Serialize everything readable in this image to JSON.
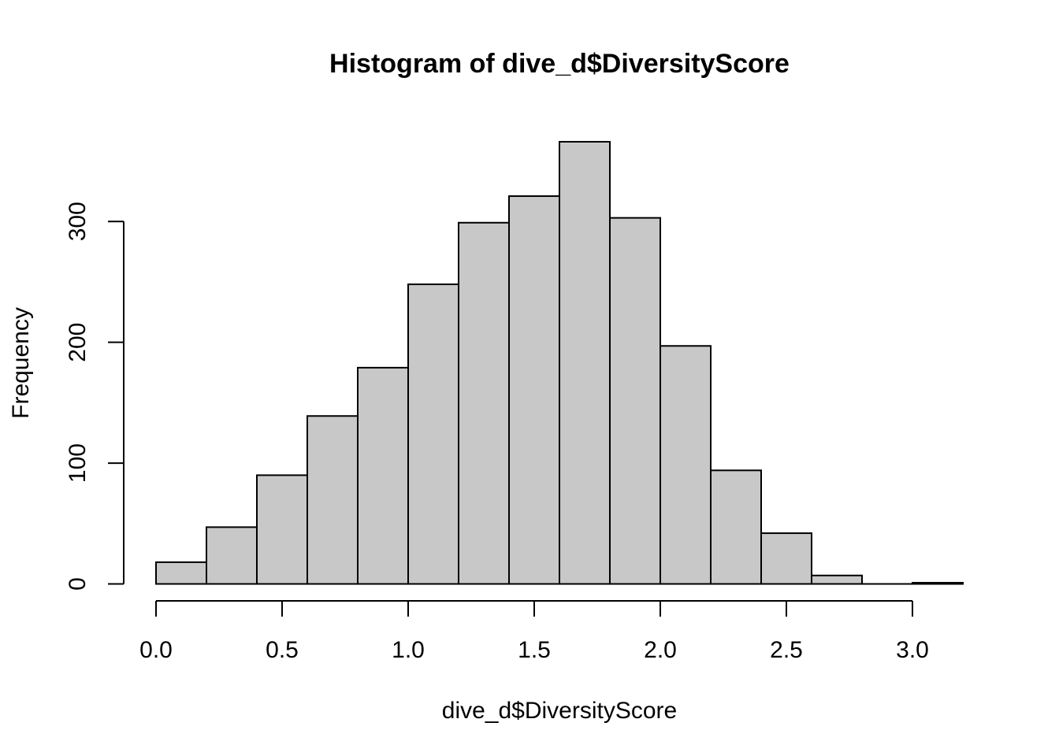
{
  "chart_data": {
    "type": "bar",
    "title": "Histogram of dive_d$DiversityScore",
    "xlabel": "dive_d$DiversityScore",
    "ylabel": "Frequency",
    "bin_edges": [
      0.0,
      0.2,
      0.4,
      0.6,
      0.8,
      1.0,
      1.2,
      1.4,
      1.6,
      1.8,
      2.0,
      2.2,
      2.4,
      2.6,
      2.8,
      3.0,
      3.2
    ],
    "values": [
      18,
      47,
      90,
      139,
      179,
      248,
      299,
      321,
      366,
      303,
      197,
      94,
      42,
      7,
      0,
      1
    ],
    "xlim": [
      0.0,
      3.2
    ],
    "ylim": [
      0,
      366
    ],
    "x_ticks": [
      0.0,
      0.5,
      1.0,
      1.5,
      2.0,
      2.5,
      3.0
    ],
    "x_tick_labels": [
      "0.0",
      "0.5",
      "1.0",
      "1.5",
      "2.0",
      "2.5",
      "3.0"
    ],
    "y_ticks": [
      0,
      100,
      200,
      300
    ],
    "y_tick_labels": [
      "0",
      "100",
      "200",
      "300"
    ],
    "grid": false,
    "bar_color": "#c8c8c8",
    "edge_color": "#000000"
  }
}
